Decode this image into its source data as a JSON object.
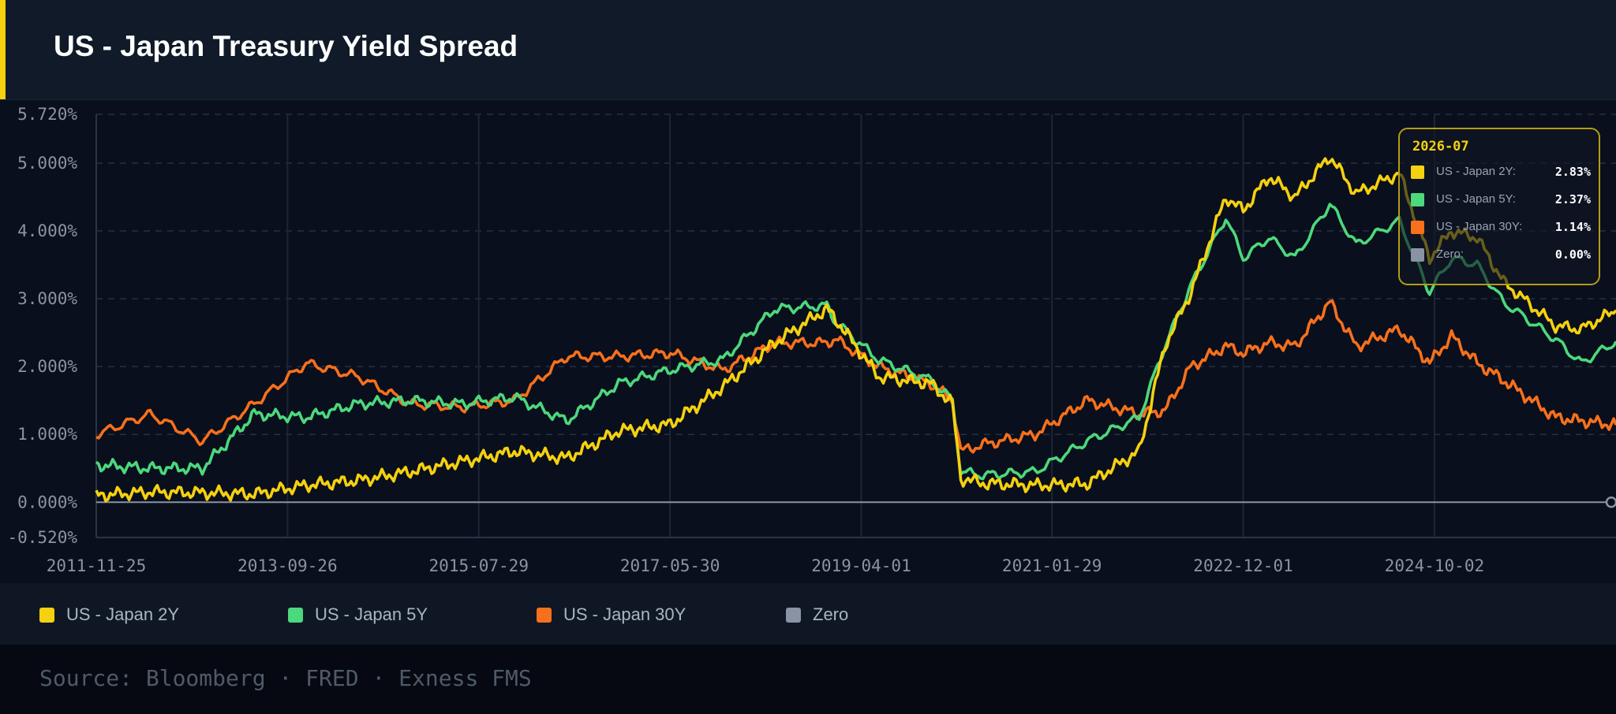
{
  "header": {
    "title": "US - Japan Treasury Yield Spread",
    "accent_color": "#f5d10f"
  },
  "chart_data": {
    "type": "line",
    "title": "US - Japan Treasury Yield Spread",
    "xlabel": "",
    "ylabel": "",
    "x_range": [
      "2011-11-25",
      "2026-07"
    ],
    "ylim": [
      -0.52,
      5.72
    ],
    "y_ticks": [
      "5.720%",
      "5.000%",
      "4.000%",
      "3.000%",
      "2.000%",
      "1.000%",
      "0.000%",
      "-0.520%"
    ],
    "y_tick_values": [
      5.72,
      5.0,
      4.0,
      3.0,
      2.0,
      1.0,
      0.0,
      -0.52
    ],
    "x_ticks": [
      "2011-11-25",
      "2013-09-26",
      "2015-07-29",
      "2017-05-30",
      "2019-04-01",
      "2021-01-29",
      "2022-12-01",
      "2024-10-02"
    ],
    "grid": true,
    "legend_position": "bottom",
    "series": [
      {
        "name": "US - Japan 2Y",
        "color": "#f5d10f",
        "points": [
          [
            "2011-11-25",
            0.1
          ],
          [
            "2012-06-01",
            0.15
          ],
          [
            "2012-12-01",
            0.14
          ],
          [
            "2013-06-01",
            0.12
          ],
          [
            "2013-12-01",
            0.25
          ],
          [
            "2014-06-01",
            0.32
          ],
          [
            "2014-12-01",
            0.45
          ],
          [
            "2015-06-01",
            0.6
          ],
          [
            "2015-12-01",
            0.75
          ],
          [
            "2016-06-01",
            0.65
          ],
          [
            "2016-12-01",
            1.05
          ],
          [
            "2017-06-01",
            1.15
          ],
          [
            "2017-12-01",
            1.7
          ],
          [
            "2018-06-01",
            2.35
          ],
          [
            "2018-12-01",
            2.85
          ],
          [
            "2019-01-01",
            2.7
          ],
          [
            "2019-06-01",
            1.85
          ],
          [
            "2019-12-01",
            1.75
          ],
          [
            "2020-02-15",
            1.45
          ],
          [
            "2020-03-15",
            0.35
          ],
          [
            "2020-06-01",
            0.28
          ],
          [
            "2020-12-01",
            0.25
          ],
          [
            "2021-06-01",
            0.27
          ],
          [
            "2021-12-01",
            0.75
          ],
          [
            "2022-03-01",
            2.3
          ],
          [
            "2022-06-01",
            3.1
          ],
          [
            "2022-10-01",
            4.5
          ],
          [
            "2022-12-01",
            4.3
          ],
          [
            "2023-03-01",
            4.8
          ],
          [
            "2023-06-01",
            4.5
          ],
          [
            "2023-10-01",
            5.1
          ],
          [
            "2024-01-01",
            4.55
          ],
          [
            "2024-06-01",
            4.85
          ],
          [
            "2024-09-15",
            3.6
          ],
          [
            "2024-12-01",
            4.0
          ],
          [
            "2025-03-01",
            3.9
          ],
          [
            "2025-06-01",
            3.25
          ],
          [
            "2025-12-01",
            2.6
          ],
          [
            "2026-03-01",
            2.55
          ],
          [
            "2026-07-01",
            2.83
          ]
        ]
      },
      {
        "name": "US - Japan 5Y",
        "color": "#4cd87c",
        "points": [
          [
            "2011-11-25",
            0.55
          ],
          [
            "2012-06-01",
            0.5
          ],
          [
            "2012-12-01",
            0.5
          ],
          [
            "2013-06-01",
            1.3
          ],
          [
            "2013-12-01",
            1.25
          ],
          [
            "2014-06-01",
            1.45
          ],
          [
            "2014-12-01",
            1.5
          ],
          [
            "2015-06-01",
            1.45
          ],
          [
            "2015-12-01",
            1.55
          ],
          [
            "2016-06-01",
            1.2
          ],
          [
            "2016-12-01",
            1.75
          ],
          [
            "2017-06-01",
            1.95
          ],
          [
            "2017-12-01",
            2.1
          ],
          [
            "2018-06-01",
            2.85
          ],
          [
            "2018-12-01",
            2.9
          ],
          [
            "2019-01-01",
            2.65
          ],
          [
            "2019-06-01",
            2.1
          ],
          [
            "2019-12-01",
            1.8
          ],
          [
            "2020-02-15",
            1.5
          ],
          [
            "2020-03-15",
            0.45
          ],
          [
            "2020-06-01",
            0.4
          ],
          [
            "2020-12-01",
            0.45
          ],
          [
            "2021-06-01",
            0.9
          ],
          [
            "2021-12-01",
            1.25
          ],
          [
            "2022-03-01",
            2.3
          ],
          [
            "2022-06-01",
            3.2
          ],
          [
            "2022-10-01",
            4.2
          ],
          [
            "2022-12-01",
            3.6
          ],
          [
            "2023-03-01",
            3.9
          ],
          [
            "2023-06-01",
            3.6
          ],
          [
            "2023-10-01",
            4.4
          ],
          [
            "2024-01-01",
            3.8
          ],
          [
            "2024-06-01",
            4.15
          ],
          [
            "2024-09-15",
            3.1
          ],
          [
            "2024-12-01",
            3.6
          ],
          [
            "2025-03-01",
            3.5
          ],
          [
            "2025-06-01",
            2.95
          ],
          [
            "2025-12-01",
            2.4
          ],
          [
            "2026-03-01",
            2.05
          ],
          [
            "2026-07-01",
            2.37
          ]
        ]
      },
      {
        "name": "US - Japan 30Y",
        "color": "#f7701b",
        "points": [
          [
            "2011-11-25",
            1.0
          ],
          [
            "2012-06-01",
            1.3
          ],
          [
            "2012-12-01",
            0.9
          ],
          [
            "2013-06-01",
            1.45
          ],
          [
            "2013-12-01",
            2.05
          ],
          [
            "2014-06-01",
            1.85
          ],
          [
            "2014-12-01",
            1.45
          ],
          [
            "2015-06-01",
            1.4
          ],
          [
            "2015-12-01",
            1.5
          ],
          [
            "2016-06-01",
            2.15
          ],
          [
            "2016-12-01",
            2.15
          ],
          [
            "2017-06-01",
            2.2
          ],
          [
            "2017-12-01",
            1.95
          ],
          [
            "2018-06-01",
            2.35
          ],
          [
            "2018-12-01",
            2.35
          ],
          [
            "2019-01-01",
            2.4
          ],
          [
            "2019-06-01",
            2.0
          ],
          [
            "2019-12-01",
            1.75
          ],
          [
            "2020-02-15",
            1.5
          ],
          [
            "2020-03-15",
            0.75
          ],
          [
            "2020-06-01",
            0.85
          ],
          [
            "2020-12-01",
            1.0
          ],
          [
            "2021-06-01",
            1.5
          ],
          [
            "2021-12-01",
            1.3
          ],
          [
            "2022-03-01",
            1.35
          ],
          [
            "2022-06-01",
            2.0
          ],
          [
            "2022-10-01",
            2.3
          ],
          [
            "2022-12-01",
            2.2
          ],
          [
            "2023-03-01",
            2.35
          ],
          [
            "2023-06-01",
            2.3
          ],
          [
            "2023-10-01",
            2.95
          ],
          [
            "2024-01-01",
            2.3
          ],
          [
            "2024-06-01",
            2.55
          ],
          [
            "2024-09-15",
            2.05
          ],
          [
            "2024-12-01",
            2.45
          ],
          [
            "2025-03-01",
            2.05
          ],
          [
            "2025-06-01",
            1.8
          ],
          [
            "2025-12-01",
            1.25
          ],
          [
            "2026-03-01",
            1.2
          ],
          [
            "2026-07-01",
            1.14
          ]
        ]
      },
      {
        "name": "Zero",
        "color": "#8a93a3",
        "points": [
          [
            "2011-11-25",
            0.0
          ],
          [
            "2026-07-01",
            0.0
          ]
        ]
      }
    ]
  },
  "legend": {
    "items": [
      {
        "label": "US - Japan 2Y",
        "color": "#f5d10f"
      },
      {
        "label": "US - Japan 5Y",
        "color": "#4cd87c"
      },
      {
        "label": "US - Japan 30Y",
        "color": "#f7701b"
      },
      {
        "label": "Zero",
        "color": "#8a93a3"
      }
    ]
  },
  "tooltip": {
    "date": "2026-07",
    "rows": [
      {
        "label": "US - Japan 2Y:",
        "value": "2.83%",
        "color": "#f5d10f"
      },
      {
        "label": "US - Japan 5Y:",
        "value": "2.37%",
        "color": "#4cd87c"
      },
      {
        "label": "US - Japan 30Y:",
        "value": "1.14%",
        "color": "#f7701b"
      },
      {
        "label": "Zero:",
        "value": "0.00%",
        "color": "#8a93a3"
      }
    ]
  },
  "footer": {
    "source": "Source: Bloomberg · FRED · Exness FMS"
  }
}
